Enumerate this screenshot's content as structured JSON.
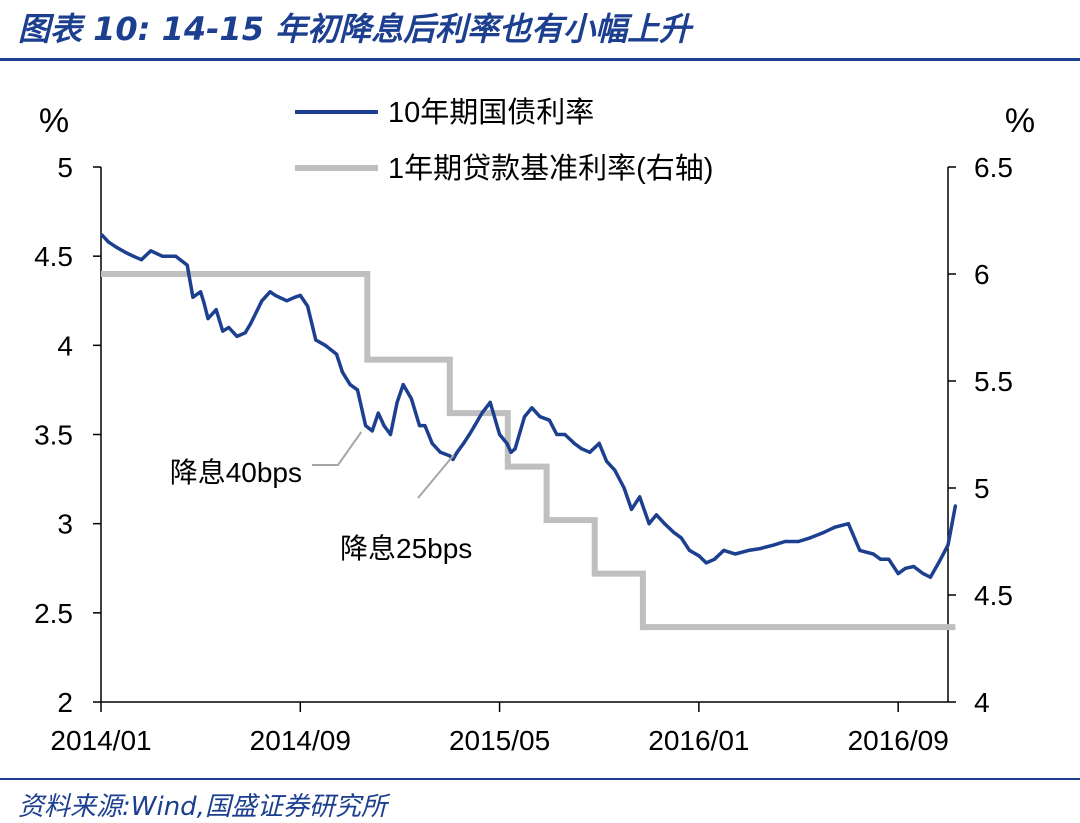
{
  "figure": {
    "title": "图表 10:  14-15 年初降息后利率也有小幅上升",
    "source": "资料来源:Wind,国盛证券研究所"
  },
  "colors": {
    "series1": "#1c3f8f",
    "series2": "#bfbfbf",
    "title": "#1c3f8f"
  },
  "chart_data": {
    "type": "line",
    "title": "",
    "y_unit_left": "%",
    "y_unit_right": "%",
    "ylim_left": [
      2,
      5
    ],
    "ylim_right": [
      4,
      6.5
    ],
    "yticks_left": [
      "5",
      "4.5",
      "4",
      "3.5",
      "3",
      "2.5",
      "2"
    ],
    "yticks_right": [
      "6.5",
      "6",
      "5.5",
      "5",
      "4.5",
      "4"
    ],
    "xlim": [
      "2014-01",
      "2016-11"
    ],
    "xticks": [
      "2014/01",
      "2014/09",
      "2015/05",
      "2016/01",
      "2016/09"
    ],
    "grid": false,
    "legend_position": "top-center",
    "series": [
      {
        "name": "10年期国债利率",
        "axis": "left",
        "x": [
          "2014-01-02",
          "2014-01-10",
          "2014-01-20",
          "2014-02-01",
          "2014-02-10",
          "2014-02-20",
          "2014-03-01",
          "2014-03-15",
          "2014-04-01",
          "2014-04-15",
          "2014-04-22",
          "2014-05-01",
          "2014-05-05",
          "2014-05-10",
          "2014-05-20",
          "2014-05-28",
          "2014-06-05",
          "2014-06-15",
          "2014-06-25",
          "2014-07-01",
          "2014-07-15",
          "2014-07-25",
          "2014-08-01",
          "2014-08-15",
          "2014-08-25",
          "2014-09-01",
          "2014-09-10",
          "2014-09-20",
          "2014-10-01",
          "2014-10-15",
          "2014-10-22",
          "2014-11-01",
          "2014-11-10",
          "2014-11-20",
          "2014-11-28",
          "2014-12-05",
          "2014-12-12",
          "2014-12-20",
          "2014-12-28",
          "2015-01-05",
          "2015-01-15",
          "2015-01-25",
          "2015-02-01",
          "2015-02-10",
          "2015-02-20",
          "2015-03-01",
          "2015-03-05",
          "2015-03-10",
          "2015-03-18",
          "2015-03-25",
          "2015-04-01",
          "2015-04-10",
          "2015-04-20",
          "2015-05-01",
          "2015-05-10",
          "2015-05-15",
          "2015-05-20",
          "2015-06-01",
          "2015-06-10",
          "2015-06-20",
          "2015-07-01",
          "2015-07-10",
          "2015-07-20",
          "2015-08-01",
          "2015-08-10",
          "2015-08-20",
          "2015-09-01",
          "2015-09-10",
          "2015-09-20",
          "2015-10-01",
          "2015-10-10",
          "2015-10-20",
          "2015-11-01",
          "2015-11-10",
          "2015-11-20",
          "2015-12-01",
          "2015-12-10",
          "2015-12-20",
          "2016-01-01",
          "2016-01-10",
          "2016-01-20",
          "2016-02-01",
          "2016-02-15",
          "2016-03-01",
          "2016-03-15",
          "2016-04-01",
          "2016-04-15",
          "2016-05-01",
          "2016-05-15",
          "2016-06-01",
          "2016-06-15",
          "2016-07-01",
          "2016-07-15",
          "2016-08-01",
          "2016-08-10",
          "2016-08-20",
          "2016-09-01",
          "2016-09-10",
          "2016-09-20",
          "2016-10-01",
          "2016-10-10",
          "2016-10-20",
          "2016-11-01",
          "2016-11-10"
        ],
        "values": [
          4.62,
          4.58,
          4.55,
          4.52,
          4.5,
          4.48,
          4.53,
          4.5,
          4.5,
          4.45,
          4.27,
          4.3,
          4.24,
          4.15,
          4.2,
          4.08,
          4.1,
          4.05,
          4.07,
          4.12,
          4.25,
          4.3,
          4.28,
          4.25,
          4.27,
          4.28,
          4.22,
          4.03,
          4.0,
          3.95,
          3.85,
          3.78,
          3.75,
          3.55,
          3.52,
          3.62,
          3.55,
          3.5,
          3.68,
          3.78,
          3.7,
          3.55,
          3.55,
          3.45,
          3.4,
          3.38,
          3.36,
          3.4,
          3.45,
          3.5,
          3.55,
          3.62,
          3.68,
          3.5,
          3.45,
          3.4,
          3.42,
          3.6,
          3.65,
          3.6,
          3.58,
          3.5,
          3.5,
          3.45,
          3.42,
          3.4,
          3.45,
          3.35,
          3.3,
          3.2,
          3.08,
          3.15,
          3.0,
          3.05,
          3.0,
          2.95,
          2.92,
          2.85,
          2.82,
          2.78,
          2.8,
          2.85,
          2.83,
          2.85,
          2.86,
          2.88,
          2.9,
          2.9,
          2.92,
          2.95,
          2.98,
          3.0,
          2.85,
          2.83,
          2.8,
          2.8,
          2.72,
          2.75,
          2.76,
          2.72,
          2.7,
          2.78,
          2.88,
          3.1
        ]
      },
      {
        "name": "1年期贷款基准利率(右轴)",
        "axis": "right",
        "step": true,
        "x": [
          "2014-01-01",
          "2014-11-22",
          "2015-03-01",
          "2015-05-11",
          "2015-06-28",
          "2015-08-26",
          "2015-10-24",
          "2016-11-10"
        ],
        "values": [
          6.0,
          5.6,
          5.35,
          5.1,
          4.85,
          4.6,
          4.35,
          4.35
        ]
      }
    ],
    "annotations": [
      {
        "text": "降息40bps",
        "x": "2014-11-22"
      },
      {
        "text": "降息25bps",
        "x": "2015-03-01"
      }
    ]
  }
}
